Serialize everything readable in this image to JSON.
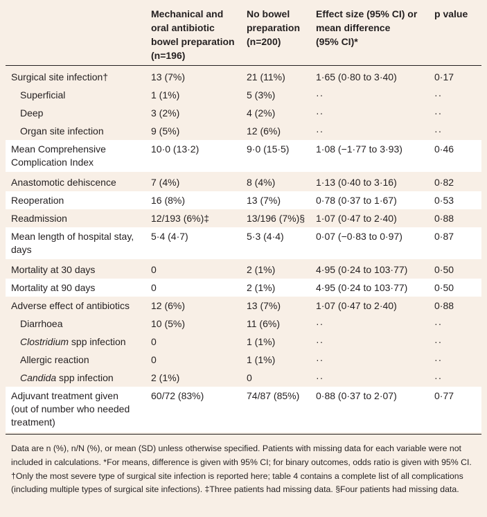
{
  "columns": {
    "group1": "Mechanical and oral antibiotic bowel preparation (n=196)",
    "group2": "No bowel preparation (n=200)",
    "effect": "Effect size (95% CI) or mean difference (95% CI)*",
    "pvalue": "p value"
  },
  "header_lines": {
    "group1": [
      "Mechanical and",
      "oral antibiotic",
      "bowel preparation",
      "(n=196)"
    ],
    "group2": [
      "No bowel",
      "preparation",
      "(n=200)"
    ],
    "effect": [
      "Effect size (95% CI) or",
      "mean difference",
      "(95% CI)*"
    ],
    "pvalue": [
      "p value"
    ]
  },
  "rows": [
    {
      "label": "Surgical site infection†",
      "g1": "13 (7%)",
      "g2": "21 (11%)",
      "effect": "1·65 (0·80 to 3·40)",
      "p": "0·17"
    },
    {
      "label": "Superficial",
      "g1": "1 (1%)",
      "g2": "5 (3%)",
      "effect": "··",
      "p": "··"
    },
    {
      "label": "Deep",
      "g1": "3 (2%)",
      "g2": "4 (2%)",
      "effect": "··",
      "p": "··"
    },
    {
      "label": "Organ site infection",
      "g1": "9 (5%)",
      "g2": "12 (6%)",
      "effect": "··",
      "p": "··"
    },
    {
      "label_lines": [
        "Mean Comprehensive",
        "Complication Index"
      ],
      "g1": "10·0 (13·2)",
      "g2": "9·0 (15·5)",
      "effect": "1·08 (−1·77 to 3·93)",
      "p": "0·46"
    },
    {
      "label": "Anastomotic dehiscence",
      "g1": "7 (4%)",
      "g2": "8 (4%)",
      "effect": "1·13 (0·40 to 3·16)",
      "p": "0·82"
    },
    {
      "label": "Reoperation",
      "g1": "16 (8%)",
      "g2": "13 (7%)",
      "effect": "0·78 (0·37 to 1·67)",
      "p": "0·53"
    },
    {
      "label": "Readmission",
      "g1": "12/193 (6%)‡",
      "g2": "13/196 (7%)§",
      "effect": "1·07 (0·47 to 2·40)",
      "p": "0·88"
    },
    {
      "label_lines": [
        "Mean length of hospital stay,",
        "days"
      ],
      "g1": "5·4 (4·7)",
      "g2": "5·3 (4·4)",
      "effect": "0·07 (−0·83 to 0·97)",
      "p": "0·87"
    },
    {
      "label": "Mortality at 30 days",
      "g1": "0",
      "g2": "2 (1%)",
      "effect": "4·95 (0·24 to 103·77)",
      "p": "0·50"
    },
    {
      "label": "Mortality at 90 days",
      "g1": "0",
      "g2": "2 (1%)",
      "effect": "4·95 (0·24 to 103·77)",
      "p": "0·50"
    },
    {
      "label": "Adverse effect of antibiotics",
      "g1": "12 (6%)",
      "g2": "13 (7%)",
      "effect": "1·07 (0·47 to 2·40)",
      "p": "0·88"
    },
    {
      "label": "Diarrhoea",
      "g1": "10 (5%)",
      "g2": "11 (6%)",
      "effect": "··",
      "p": "··"
    },
    {
      "label_italic": "Clostridium",
      "label_rest": " spp infection",
      "g1": "0",
      "g2": "1 (1%)",
      "effect": "··",
      "p": "··"
    },
    {
      "label": "Allergic reaction",
      "g1": "0",
      "g2": "1 (1%)",
      "effect": "··",
      "p": "··"
    },
    {
      "label_italic": "Candida",
      "label_rest": " spp infection",
      "g1": "2 (1%)",
      "g2": "0",
      "effect": "··",
      "p": "··"
    },
    {
      "label_lines": [
        "Adjuvant treatment given",
        "(out of number who needed",
        "treatment)"
      ],
      "g1": "60/72 (83%)",
      "g2": "74/87 (85%)",
      "effect": "0·88 (0·37 to 2·07)",
      "p": "0·77"
    }
  ],
  "footnote": "Data are n (%), n/N (%), or mean (SD) unless otherwise specified. Patients with missing data for each variable were not included in calculations. *For means, difference is given with 95% CI; for binary outcomes, odds ratio is given with 95% CI. †Only the most severe type of surgical site infection is reported here; table 4 contains a complete list of all complications (including multiple types of surgical site infections). ‡Three patients had missing data. §Four patients had missing data."
}
